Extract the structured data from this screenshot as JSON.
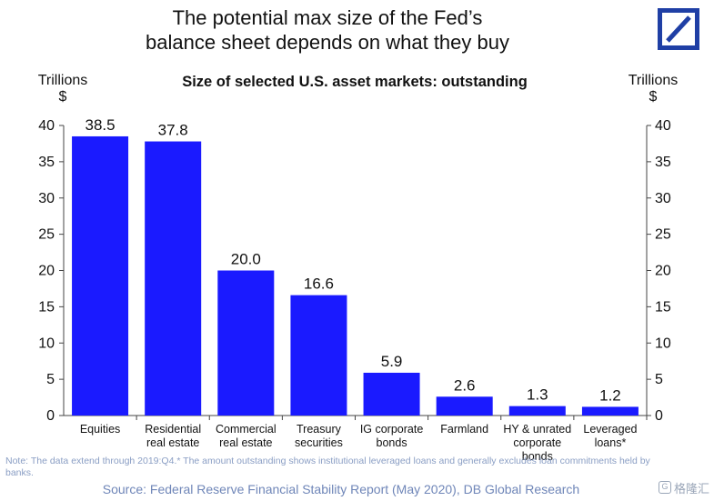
{
  "headline": {
    "line1": "The potential max size of the Fed’s",
    "line2": "balance sheet depends on what they buy"
  },
  "logo": {
    "name": "deutsche-bank-logo",
    "color": "#1f3fa5"
  },
  "watermark": {
    "text": "格隆汇",
    "icon": "G"
  },
  "note": "Note: The data extend through 2019:Q4.* The amount outstanding shows institutional leveraged loans and generally excludes loan commitments held by banks.",
  "source": "Source: Federal Reserve Financial Stability Report (May 2020), DB Global Research",
  "chart_data": {
    "type": "bar",
    "title": "Size of selected U.S. asset markets: outstanding",
    "ylabel_left": [
      "Trillions",
      "$"
    ],
    "ylabel_right": [
      "Trillions",
      "$"
    ],
    "ylim": [
      0,
      40
    ],
    "yticks": [
      0,
      5,
      10,
      15,
      20,
      25,
      30,
      35,
      40
    ],
    "bar_color": "#1a1aff",
    "categories": [
      [
        "Equities"
      ],
      [
        "Residential",
        "real estate"
      ],
      [
        "Commercial",
        "real estate"
      ],
      [
        "Treasury",
        "securities"
      ],
      [
        "IG corporate",
        "bonds"
      ],
      [
        "Farmland"
      ],
      [
        "HY & unrated",
        "corporate",
        "bonds"
      ],
      [
        "Leveraged",
        "loans*"
      ]
    ],
    "values": [
      38.5,
      37.8,
      20.0,
      16.6,
      5.9,
      2.6,
      1.3,
      1.2
    ],
    "value_labels": [
      "38.5",
      "37.8",
      "20.0",
      "16.6",
      "5.9",
      "2.6",
      "1.3",
      "1.2"
    ],
    "grid": false,
    "legend": "none"
  }
}
